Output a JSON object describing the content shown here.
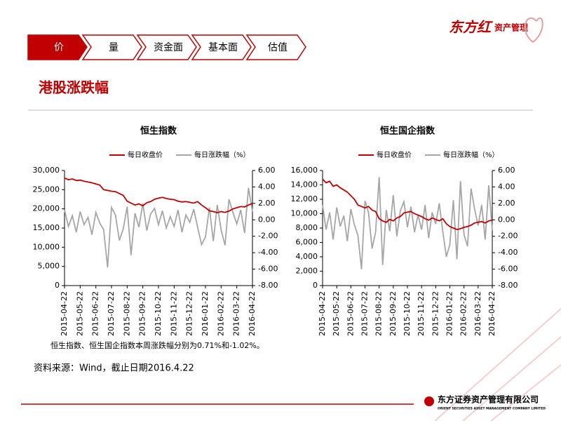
{
  "logo": {
    "brand": "东方红",
    "name": "资产管理"
  },
  "tabs": [
    "价",
    "量",
    "资金面",
    "基本面",
    "估值"
  ],
  "section_title": "港股涨跌幅",
  "note": "恒生指数、恒生国企指数本周涨跌幅分别为0.71%和-1.02%。",
  "source": "资料来源：Wind，截止日期2016.4.22",
  "footer": {
    "company": "东方证券资产管理有限公司",
    "company_en": "ORIENT SECURITIES ASSET MANAGEMENT COMPANY LIMITED"
  },
  "chart_data": [
    {
      "type": "line",
      "title": "恒生指数",
      "categories": [
        "2015-04-22",
        null,
        null,
        null,
        "2015-05-22",
        null,
        null,
        null,
        "2015-06-22",
        null,
        null,
        null,
        "2015-07-22",
        null,
        null,
        null,
        "2015-08-22",
        null,
        null,
        null,
        "2015-09-22",
        null,
        null,
        null,
        "2015-10-22",
        null,
        null,
        null,
        "2015-11-22",
        null,
        null,
        null,
        "2015-12-22",
        null,
        null,
        null,
        "2016-01-22",
        null,
        null,
        null,
        "2016-02-22",
        null,
        null,
        null,
        "2016-03-22",
        null,
        null,
        null,
        "2016-04-22"
      ],
      "series": [
        {
          "name": "每日收盘价",
          "color": "#c00000",
          "axis": "y",
          "values": [
            28000,
            27600,
            27800,
            27400,
            27500,
            27200,
            27000,
            26800,
            26500,
            26200,
            25000,
            24800,
            24600,
            24500,
            24000,
            23500,
            22000,
            21500,
            21000,
            21300,
            20800,
            21600,
            21900,
            22500,
            22800,
            23000,
            22700,
            22500,
            22400,
            22000,
            21800,
            21900,
            21700,
            21500,
            21900,
            21000,
            20300,
            19500,
            19300,
            19000,
            19300,
            19100,
            19400,
            20000,
            20300,
            20600,
            20500,
            21000,
            21400
          ]
        },
        {
          "name": "每日涨跌幅（%）",
          "color": "#a6a6a6",
          "axis": "y2",
          "values": [
            1.2,
            -0.8,
            0.5,
            -1.5,
            1.0,
            -0.6,
            0.3,
            -1.8,
            0.9,
            -0.4,
            -1.2,
            -5.8,
            1.5,
            0.6,
            -2.5,
            -1.1,
            1.6,
            -4.3,
            0.8,
            -0.9,
            2.0,
            -1.3,
            0.7,
            1.4,
            -0.6,
            1.1,
            -1.0,
            0.4,
            -0.8,
            1.2,
            -1.5,
            0.6,
            -0.3,
            1.3,
            -0.9,
            -3.0,
            -2.1,
            1.5,
            -2.6,
            1.8,
            -1.2,
            -3.1,
            2.5,
            0.9,
            -0.5,
            1.2,
            -1.6,
            3.9,
            1.0
          ]
        }
      ],
      "ylim": [
        0,
        30000
      ],
      "yticks": [
        0,
        {
          "value": 5000,
          "label": "5,000"
        },
        {
          "value": 10000,
          "label": "10,000"
        },
        {
          "value": 15000,
          "label": "15,000"
        },
        {
          "value": 20000,
          "label": "20,000"
        },
        {
          "value": 25000,
          "label": "25,000"
        },
        {
          "value": 30000,
          "label": "30,000"
        }
      ],
      "y2lim": [
        -8,
        6
      ],
      "y2ticks": [
        {
          "value": -8,
          "label": "-8.00"
        },
        {
          "value": -6,
          "label": "-6.00"
        },
        {
          "value": -4,
          "label": "-4.00"
        },
        {
          "value": -2,
          "label": "-2.00"
        },
        {
          "value": 0,
          "label": "0.00"
        },
        {
          "value": 2,
          "label": "2.00"
        },
        {
          "value": 4,
          "label": "4.00"
        },
        {
          "value": 6,
          "label": "6.00"
        }
      ],
      "legend": "top"
    },
    {
      "type": "line",
      "title": "恒生国企指数",
      "categories": [
        "2015-04-22",
        null,
        null,
        null,
        "2015-05-22",
        null,
        null,
        null,
        "2015-06-22",
        null,
        null,
        null,
        "2015-07-22",
        null,
        null,
        null,
        "2015-08-22",
        null,
        null,
        null,
        "2015-09-22",
        null,
        null,
        null,
        "2015-10-22",
        null,
        null,
        null,
        "2015-11-22",
        null,
        null,
        null,
        "2015-12-22",
        null,
        null,
        null,
        "2016-01-22",
        null,
        null,
        null,
        "2016-02-22",
        null,
        null,
        null,
        "2016-03-22",
        null,
        null,
        null,
        "2016-04-22"
      ],
      "series": [
        {
          "name": "每日收盘价",
          "color": "#c00000",
          "axis": "y",
          "values": [
            14800,
            14300,
            14500,
            13800,
            14000,
            13600,
            13300,
            13000,
            12500,
            12000,
            11200,
            11000,
            10800,
            11000,
            10500,
            10300,
            9300,
            9000,
            8800,
            9200,
            9000,
            9400,
            9600,
            10100,
            10200,
            10300,
            10000,
            9800,
            9600,
            9300,
            9100,
            9400,
            9200,
            9000,
            9300,
            8600,
            8200,
            8000,
            7800,
            7900,
            8100,
            8200,
            8400,
            8700,
            8800,
            8900,
            8700,
            9000,
            9100
          ]
        },
        {
          "name": "每日涨跌幅（%）",
          "color": "#a6a6a6",
          "axis": "y2",
          "values": [
            1.8,
            -1.2,
            0.9,
            -2.4,
            1.5,
            -0.8,
            0.5,
            -2.6,
            1.3,
            -0.6,
            -1.9,
            -6.0,
            2.3,
            0.9,
            -3.5,
            -1.5,
            5.2,
            -5.5,
            1.2,
            -1.4,
            3.0,
            -2.0,
            1.1,
            2.2,
            -0.9,
            1.6,
            -1.5,
            0.6,
            -1.2,
            1.8,
            -2.2,
            0.9,
            -0.5,
            2.0,
            -1.4,
            -4.5,
            -3.0,
            2.4,
            -4.8,
            4.7,
            -1.8,
            -3.2,
            3.8,
            1.3,
            -0.7,
            1.8,
            -2.4,
            4.2,
            -1.3
          ]
        }
      ],
      "ylim": [
        0,
        16000
      ],
      "yticks": [
        0,
        {
          "value": 2000,
          "label": "2,000"
        },
        {
          "value": 4000,
          "label": "4,000"
        },
        {
          "value": 6000,
          "label": "6,000"
        },
        {
          "value": 8000,
          "label": "8,000"
        },
        {
          "value": 10000,
          "label": "10,000"
        },
        {
          "value": 12000,
          "label": "12,000"
        },
        {
          "value": 14000,
          "label": "14,000"
        },
        {
          "value": 16000,
          "label": "16,000"
        }
      ],
      "y2lim": [
        -8,
        6
      ],
      "y2ticks": [
        {
          "value": -8,
          "label": "-8.00"
        },
        {
          "value": -6,
          "label": "-6.00"
        },
        {
          "value": -4,
          "label": "-4.00"
        },
        {
          "value": -2,
          "label": "-2.00"
        },
        {
          "value": 0,
          "label": "0.00"
        },
        {
          "value": 2,
          "label": "2.00"
        },
        {
          "value": 4,
          "label": "4.00"
        },
        {
          "value": 6,
          "label": "6.00"
        }
      ],
      "legend": "top"
    }
  ]
}
